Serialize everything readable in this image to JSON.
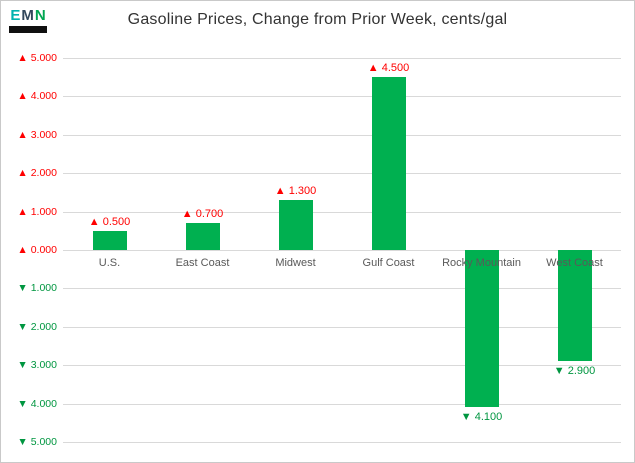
{
  "logo": {
    "letters": [
      {
        "char": "E",
        "color": "#00b2af"
      },
      {
        "char": "M",
        "color": "#33475b"
      },
      {
        "char": "N",
        "color": "#00a651"
      }
    ]
  },
  "chart_data": {
    "type": "bar",
    "title": "Gasoline Prices, Change from Prior Week, cents/gal",
    "categories": [
      "U.S.",
      "East Coast",
      "Midwest",
      "Gulf Coast",
      "Rocky Mountain",
      "West Coast"
    ],
    "values": [
      0.5,
      0.7,
      1.3,
      4.5,
      -4.1,
      -2.9
    ],
    "value_labels": [
      "▲ 0.500",
      "▲ 0.700",
      "▲ 1.300",
      "▲ 4.500",
      "▼ 4.100",
      "▼ 2.900"
    ],
    "ylim": [
      -5,
      5
    ],
    "ytick_step": 1,
    "ytick_labels": [
      "▲ 5.000",
      "▲ 4.000",
      "▲ 3.000",
      "▲ 2.000",
      "▲ 1.000",
      "▲ 0.000",
      "▼ 1.000",
      "▼ 2.000",
      "▼ 3.000",
      "▼ 4.000",
      "▼ 5.000"
    ],
    "grid": true,
    "legend": false,
    "bar_color": "#00B050",
    "up_color": "#FF0000",
    "down_color": "#009640",
    "category_label_color": "#595959",
    "up_arrow": "▲",
    "down_arrow": "▼"
  }
}
